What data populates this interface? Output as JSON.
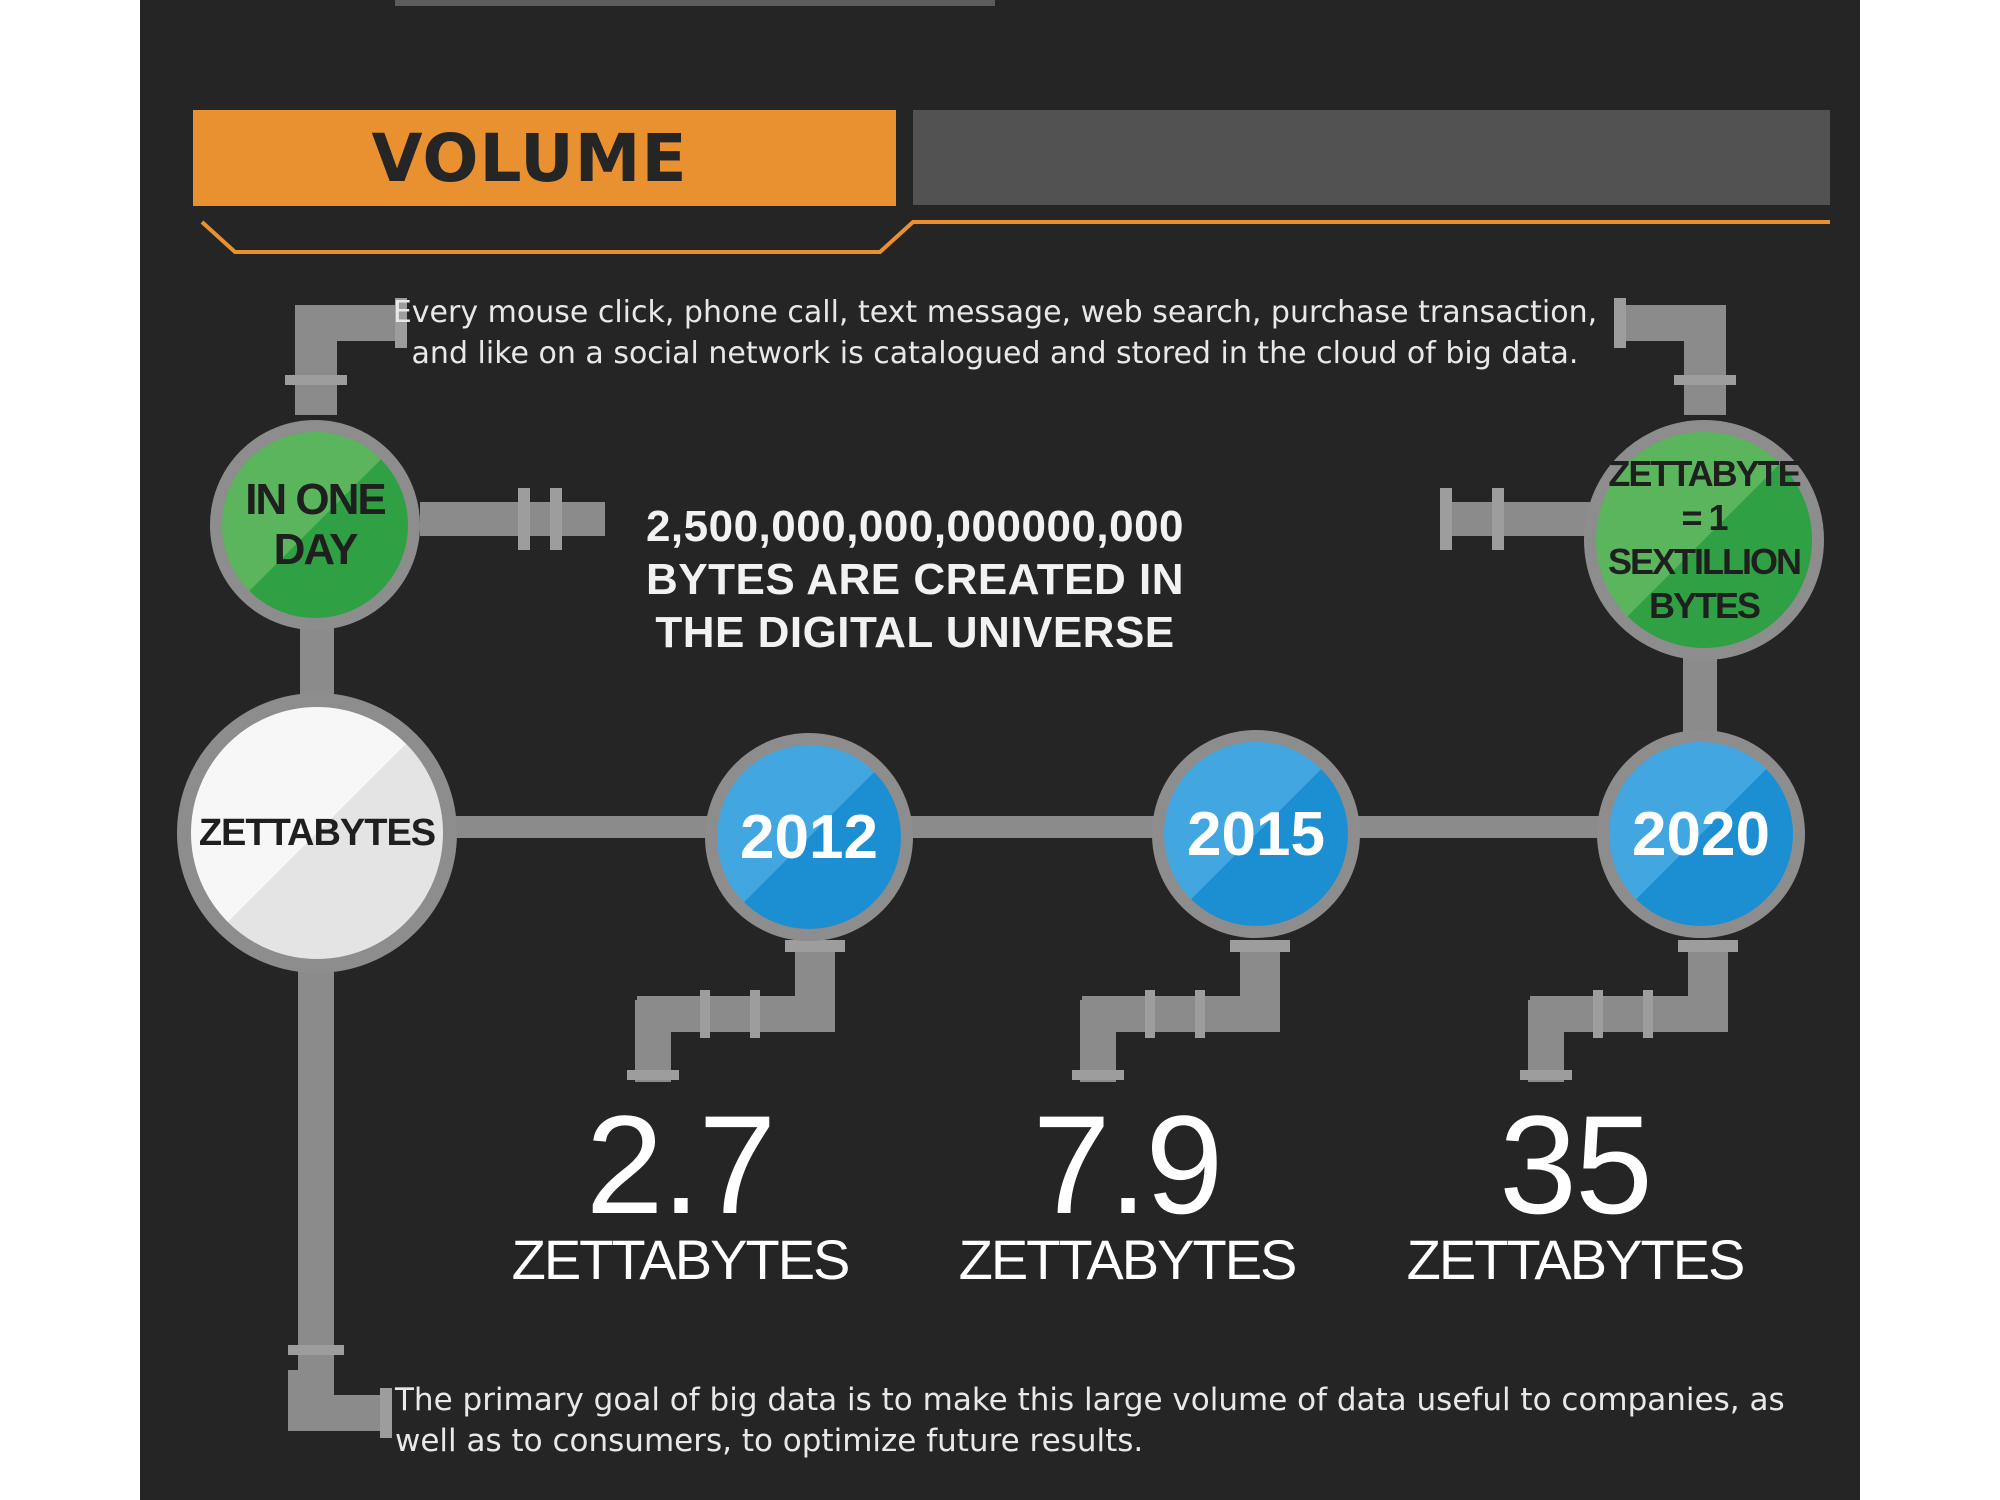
{
  "header": {
    "title": "VOLUME"
  },
  "intro_text": "Every mouse click, phone call, text message, web search, purchase transaction, and like on a social network is catalogued and stored in the cloud of big data.",
  "left_bubble": {
    "label": "IN ONE DAY"
  },
  "headline": "2,500,000,000,000000,000 BYTES ARE CREATED IN THE DIGITAL UNIVERSE",
  "right_bubble": {
    "label": "ZETTABYTE = 1 SEXTILLION BYTES"
  },
  "hub": {
    "label": "ZETTABYTES"
  },
  "years": [
    {
      "year": "2012",
      "value": "2.7",
      "unit": "ZETTABYTES"
    },
    {
      "year": "2015",
      "value": "7.9",
      "unit": "ZETTABYTES"
    },
    {
      "year": "2020",
      "value": "35",
      "unit": "ZETTABYTES"
    }
  ],
  "footer_text": "The primary goal of big data is to make this large volume of data useful to companies, as well as to consumers, to optimize future results.",
  "colors": {
    "background": "#252525",
    "accent_orange": "#e99130",
    "green": "#3aa54a",
    "blue": "#1c8ed2",
    "pipe": "#8b8b8b"
  }
}
